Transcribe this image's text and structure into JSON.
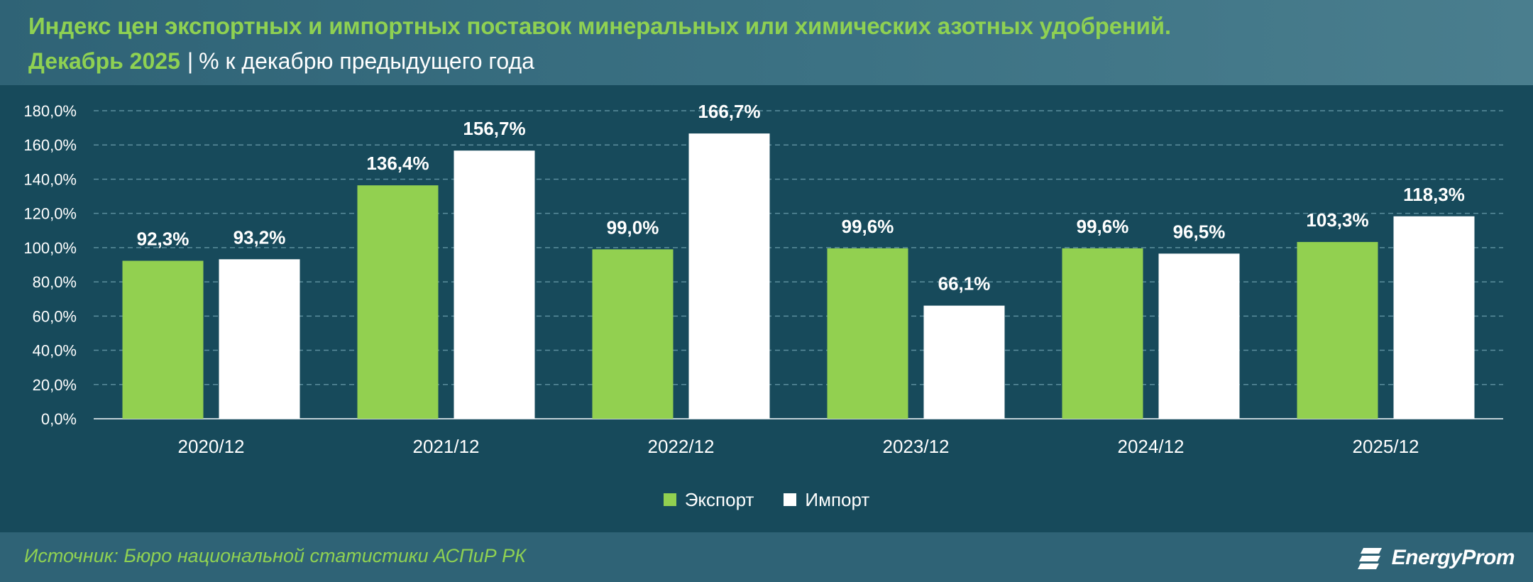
{
  "header": {
    "title": "Индекс цен экспортных и импортных поставок минеральных или химических азотных удобрений.",
    "subtitle_highlight": "Декабрь 2025",
    "subtitle_separator": "|",
    "subtitle_rest": "% к декабрю предыдущего года"
  },
  "footer": {
    "source": "Источник: Бюро национальной статистики АСПиР РК",
    "brand": "EnergyProm"
  },
  "colors": {
    "export": "#92d050",
    "import": "#ffffff",
    "background": "#174a5b",
    "header_bg": "#2f6376",
    "accent": "#8fd152"
  },
  "chart_data": {
    "type": "bar",
    "categories": [
      "2020/12",
      "2021/12",
      "2022/12",
      "2023/12",
      "2024/12",
      "2025/12"
    ],
    "series": [
      {
        "name": "Экспорт",
        "values": [
          92.3,
          136.4,
          99.0,
          99.6,
          99.6,
          103.3
        ],
        "labels": [
          "92,3%",
          "136,4%",
          "99,0%",
          "99,6%",
          "99,6%",
          "103,3%"
        ]
      },
      {
        "name": "Импорт",
        "values": [
          93.2,
          156.7,
          166.7,
          66.1,
          96.5,
          118.3
        ],
        "labels": [
          "93,2%",
          "156,7%",
          "166,7%",
          "66,1%",
          "96,5%",
          "118,3%"
        ]
      }
    ],
    "ylim": [
      0,
      180
    ],
    "yticks": [
      "0,0%",
      "20,0%",
      "40,0%",
      "60,0%",
      "80,0%",
      "100,0%",
      "120,0%",
      "140,0%",
      "160,0%",
      "180,0%"
    ],
    "xlabel": "",
    "ylabel": "",
    "grid": true,
    "legend_position": "bottom"
  }
}
